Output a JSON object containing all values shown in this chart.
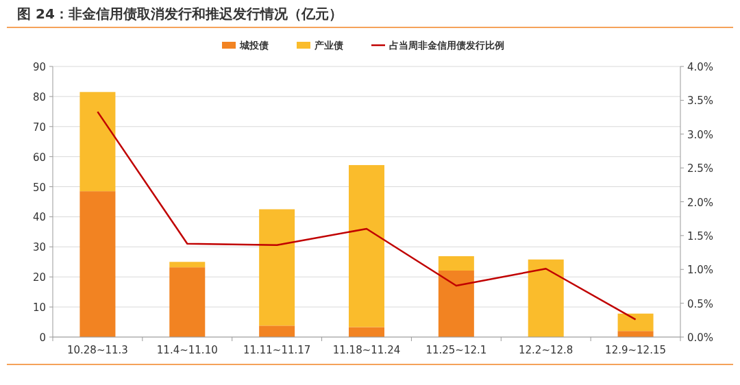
{
  "chart_data": {
    "type": "bar",
    "title": "图 24：非金信用债取消发行和推迟发行情况（亿元）",
    "stacked": true,
    "legend": "top",
    "grid": "y",
    "categories": [
      "10.28~11.3",
      "11.4~11.10",
      "11.11~11.17",
      "11.18~11.24",
      "11.25~12.1",
      "12.2~12.8",
      "12.9~12.15"
    ],
    "ylim": [
      0,
      90
    ],
    "yticks": [
      0,
      10,
      20,
      30,
      40,
      50,
      60,
      70,
      80,
      90
    ],
    "y2lim": [
      0,
      4
    ],
    "y2ticks": [
      {
        "value": 0,
        "label": "0.0%"
      },
      {
        "value": 0.5,
        "label": "0.5%"
      },
      {
        "value": 1,
        "label": "1.0%"
      },
      {
        "value": 1.5,
        "label": "1.5%"
      },
      {
        "value": 2,
        "label": "2.0%"
      },
      {
        "value": 2.5,
        "label": "2.5%"
      },
      {
        "value": 3,
        "label": "3.0%"
      },
      {
        "value": 3.5,
        "label": "3.5%"
      },
      {
        "value": 4,
        "label": "4.0%"
      }
    ],
    "series": [
      {
        "name": "城投债",
        "color": "#f28322",
        "values": [
          48.5,
          23.2,
          3.8,
          3.3,
          22.1,
          0,
          2.0
        ]
      },
      {
        "name": "产业债",
        "color": "#fabc2c",
        "values": [
          33.0,
          1.8,
          38.7,
          53.9,
          4.8,
          25.8,
          5.8
        ]
      },
      {
        "name": "占当周非金信用债发行比例",
        "type": "line",
        "axis": "y2",
        "color": "#c00000",
        "values": [
          3.33,
          1.38,
          1.36,
          1.6,
          0.76,
          1.01,
          0.26
        ]
      }
    ]
  }
}
